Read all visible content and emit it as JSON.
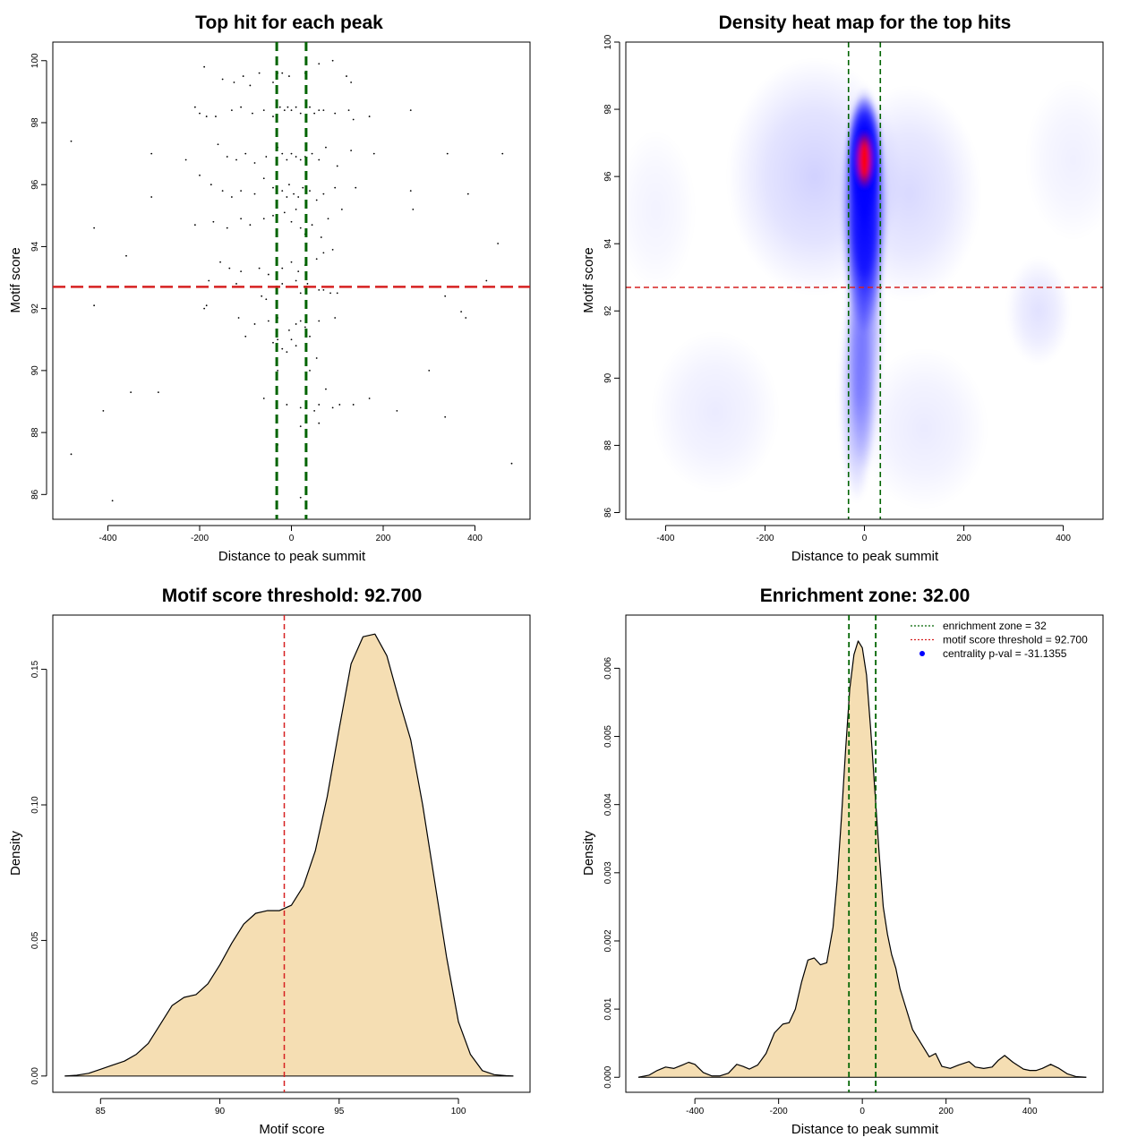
{
  "chart_data": [
    {
      "id": "scatter",
      "type": "scatter",
      "title": "Top hit for each peak",
      "xlabel": "Distance to peak summit",
      "ylabel": "Motif score",
      "xlim": [
        -520,
        520
      ],
      "ylim": [
        85.2,
        100.6
      ],
      "xticks": [
        -400,
        -200,
        0,
        200,
        400
      ],
      "yticks": [
        86,
        88,
        90,
        92,
        94,
        96,
        98,
        100
      ],
      "vlines": [
        -32,
        32
      ],
      "hline": 92.7,
      "colors": {
        "points": "#000000",
        "vline": "#006400",
        "hline": "#d62020"
      },
      "points": [
        [
          -190,
          99.8
        ],
        [
          -150,
          99.4
        ],
        [
          -125,
          99.3
        ],
        [
          -105,
          99.5
        ],
        [
          -90,
          99.2
        ],
        [
          -70,
          99.6
        ],
        [
          -30,
          99.6
        ],
        [
          -20,
          99.6
        ],
        [
          30,
          99.6
        ],
        [
          -40,
          99.3
        ],
        [
          -5,
          99.5
        ],
        [
          60,
          99.9
        ],
        [
          90,
          100.0
        ],
        [
          120,
          99.5
        ],
        [
          130,
          99.3
        ],
        [
          -210,
          98.5
        ],
        [
          -200,
          98.3
        ],
        [
          -185,
          98.2
        ],
        [
          -165,
          98.2
        ],
        [
          -130,
          98.4
        ],
        [
          -110,
          98.5
        ],
        [
          -85,
          98.3
        ],
        [
          -60,
          98.4
        ],
        [
          -40,
          98.2
        ],
        [
          -25,
          98.5
        ],
        [
          -15,
          98.4
        ],
        [
          -8,
          98.5
        ],
        [
          0,
          98.4
        ],
        [
          10,
          98.5
        ],
        [
          20,
          98.3
        ],
        [
          40,
          98.5
        ],
        [
          50,
          98.3
        ],
        [
          60,
          98.4
        ],
        [
          70,
          98.4
        ],
        [
          95,
          98.3
        ],
        [
          125,
          98.4
        ],
        [
          135,
          98.1
        ],
        [
          170,
          98.2
        ],
        [
          260,
          98.4
        ],
        [
          -480,
          97.4
        ],
        [
          -305,
          97.0
        ],
        [
          -230,
          96.8
        ],
        [
          -160,
          97.3
        ],
        [
          -140,
          96.9
        ],
        [
          -120,
          96.8
        ],
        [
          -100,
          97.0
        ],
        [
          -80,
          96.7
        ],
        [
          -55,
          96.9
        ],
        [
          -30,
          97.2
        ],
        [
          -20,
          97.0
        ],
        [
          -10,
          96.8
        ],
        [
          0,
          97.0
        ],
        [
          10,
          96.9
        ],
        [
          20,
          96.8
        ],
        [
          30,
          96.9
        ],
        [
          45,
          97.0
        ],
        [
          60,
          96.8
        ],
        [
          75,
          97.2
        ],
        [
          100,
          96.6
        ],
        [
          130,
          97.1
        ],
        [
          180,
          97.0
        ],
        [
          340,
          97.0
        ],
        [
          460,
          97.0
        ],
        [
          -200,
          96.3
        ],
        [
          -175,
          96.0
        ],
        [
          -150,
          95.8
        ],
        [
          -130,
          95.6
        ],
        [
          -110,
          95.8
        ],
        [
          -80,
          95.7
        ],
        [
          -60,
          96.2
        ],
        [
          -40,
          95.9
        ],
        [
          -20,
          95.8
        ],
        [
          -10,
          95.6
        ],
        [
          -5,
          96.0
        ],
        [
          5,
          95.7
        ],
        [
          15,
          95.6
        ],
        [
          25,
          95.9
        ],
        [
          40,
          95.8
        ],
        [
          55,
          95.5
        ],
        [
          70,
          95.7
        ],
        [
          95,
          95.9
        ],
        [
          140,
          95.9
        ],
        [
          260,
          95.8
        ],
        [
          -305,
          95.6
        ],
        [
          -210,
          94.7
        ],
        [
          -170,
          94.8
        ],
        [
          -140,
          94.6
        ],
        [
          -110,
          94.9
        ],
        [
          -90,
          94.7
        ],
        [
          -60,
          94.9
        ],
        [
          -40,
          95.0
        ],
        [
          -15,
          95.1
        ],
        [
          0,
          94.8
        ],
        [
          10,
          95.2
        ],
        [
          20,
          94.6
        ],
        [
          30,
          94.4
        ],
        [
          45,
          94.7
        ],
        [
          65,
          94.3
        ],
        [
          80,
          94.9
        ],
        [
          110,
          95.2
        ],
        [
          265,
          95.2
        ],
        [
          385,
          95.7
        ],
        [
          -430,
          94.6
        ],
        [
          -360,
          93.7
        ],
        [
          -155,
          93.5
        ],
        [
          -135,
          93.3
        ],
        [
          -110,
          93.2
        ],
        [
          -70,
          93.3
        ],
        [
          -50,
          93.1
        ],
        [
          -20,
          93.3
        ],
        [
          0,
          93.5
        ],
        [
          15,
          93.2
        ],
        [
          30,
          93.4
        ],
        [
          55,
          93.6
        ],
        [
          70,
          93.8
        ],
        [
          90,
          93.9
        ],
        [
          450,
          94.1
        ],
        [
          -180,
          92.9
        ],
        [
          -120,
          92.8
        ],
        [
          -65,
          92.4
        ],
        [
          -55,
          92.3
        ],
        [
          -20,
          92.8
        ],
        [
          10,
          92.9
        ],
        [
          20,
          92.5
        ],
        [
          35,
          92.8
        ],
        [
          60,
          92.6
        ],
        [
          70,
          92.6
        ],
        [
          85,
          92.5
        ],
        [
          100,
          92.5
        ],
        [
          335,
          92.4
        ],
        [
          425,
          92.9
        ],
        [
          -430,
          92.1
        ],
        [
          -190,
          92.0
        ],
        [
          -185,
          92.1
        ],
        [
          -115,
          91.7
        ],
        [
          -80,
          91.5
        ],
        [
          -50,
          91.6
        ],
        [
          -30,
          91.7
        ],
        [
          -5,
          91.3
        ],
        [
          10,
          91.5
        ],
        [
          20,
          91.6
        ],
        [
          30,
          91.4
        ],
        [
          60,
          91.6
        ],
        [
          95,
          91.7
        ],
        [
          370,
          91.9
        ],
        [
          380,
          91.7
        ],
        [
          -100,
          91.1
        ],
        [
          -40,
          90.9
        ],
        [
          -30,
          91.0
        ],
        [
          -20,
          90.7
        ],
        [
          -10,
          90.6
        ],
        [
          0,
          91.0
        ],
        [
          10,
          90.8
        ],
        [
          40,
          91.1
        ],
        [
          55,
          90.4
        ],
        [
          40,
          90.0
        ],
        [
          -30,
          90.0
        ],
        [
          300,
          90.0
        ],
        [
          -410,
          88.7
        ],
        [
          -350,
          89.3
        ],
        [
          -290,
          89.3
        ],
        [
          -60,
          89.1
        ],
        [
          -10,
          88.9
        ],
        [
          20,
          88.8
        ],
        [
          50,
          88.7
        ],
        [
          60,
          88.9
        ],
        [
          75,
          89.4
        ],
        [
          90,
          88.8
        ],
        [
          105,
          88.9
        ],
        [
          135,
          88.9
        ],
        [
          170,
          89.1
        ],
        [
          230,
          88.7
        ],
        [
          335,
          88.5
        ],
        [
          -480,
          87.3
        ],
        [
          -390,
          85.8
        ],
        [
          -30,
          87.6
        ],
        [
          20,
          88.2
        ],
        [
          60,
          88.3
        ],
        [
          20,
          85.9
        ],
        [
          480,
          87.0
        ]
      ]
    },
    {
      "id": "heatmap",
      "type": "heatmap",
      "title": "Density heat map for the top hits",
      "xlabel": "Distance to peak summit",
      "ylabel": "Motif score",
      "xlim": [
        -480,
        480
      ],
      "ylim": [
        85.8,
        100.0
      ],
      "xticks": [
        -400,
        -200,
        0,
        200,
        400
      ],
      "yticks": [
        86,
        88,
        90,
        92,
        94,
        96,
        98,
        100
      ],
      "vlines": [
        -32,
        32
      ],
      "hline": 92.7,
      "colors": {
        "low": "#ffffff",
        "mid": "#0000ff",
        "high": "#ff0000",
        "vline": "#006400",
        "hline": "#d62020"
      },
      "density_peak": [
        0,
        96.5
      ],
      "blobs": [
        [
          0,
          96.5,
          22,
          1.2,
          1.0
        ],
        [
          0,
          95.0,
          28,
          2.3,
          0.75
        ],
        [
          0,
          92.0,
          24,
          3.0,
          0.5
        ],
        [
          -15,
          89.5,
          22,
          2.0,
          0.35
        ],
        [
          -100,
          96.0,
          110,
          2.2,
          0.18
        ],
        [
          90,
          95.5,
          90,
          2.0,
          0.15
        ],
        [
          350,
          92.0,
          40,
          1.0,
          0.12
        ],
        [
          -300,
          89.0,
          80,
          1.5,
          0.08
        ],
        [
          120,
          88.5,
          80,
          1.5,
          0.08
        ],
        [
          -420,
          95.0,
          50,
          1.5,
          0.05
        ],
        [
          420,
          96.5,
          60,
          1.5,
          0.06
        ]
      ]
    },
    {
      "id": "score-density",
      "type": "area",
      "title": "Motif score threshold: 92.700",
      "xlabel": "Motif score",
      "ylabel": "Density",
      "xlim": [
        83,
        103
      ],
      "ylim": [
        -0.006,
        0.17
      ],
      "xticks": [
        85,
        90,
        95,
        100
      ],
      "yticks": [
        0.0,
        0.05,
        0.1,
        0.15
      ],
      "ytick_labels": [
        "0.00",
        "0.05",
        "0.10",
        "0.15"
      ],
      "vline": 92.7,
      "colors": {
        "fill": "#f5deb3",
        "line": "#000000",
        "vline": "#d62020"
      },
      "x": [
        83.5,
        84,
        84.5,
        85,
        85.5,
        86,
        86.5,
        87,
        87.5,
        88,
        88.5,
        89,
        89.5,
        90,
        90.5,
        91,
        91.5,
        92,
        92.5,
        93,
        93.5,
        94,
        94.5,
        95,
        95.5,
        96,
        96.5,
        97,
        97.5,
        98,
        98.5,
        99,
        99.5,
        100,
        100.5,
        101,
        101.5,
        102,
        102.3
      ],
      "y": [
        0.0,
        0.0003,
        0.001,
        0.0025,
        0.004,
        0.0055,
        0.008,
        0.012,
        0.019,
        0.026,
        0.029,
        0.03,
        0.034,
        0.041,
        0.049,
        0.056,
        0.06,
        0.061,
        0.061,
        0.063,
        0.07,
        0.083,
        0.103,
        0.128,
        0.152,
        0.162,
        0.163,
        0.155,
        0.139,
        0.124,
        0.1,
        0.072,
        0.044,
        0.02,
        0.008,
        0.002,
        0.0005,
        0.0001,
        0.0
      ]
    },
    {
      "id": "distance-density",
      "type": "area",
      "title": "Enrichment zone: 32.00",
      "xlabel": "Distance to peak summit",
      "ylabel": "Density",
      "xlim": [
        -565,
        575
      ],
      "ylim": [
        -0.00022,
        0.00678
      ],
      "xticks": [
        -400,
        -200,
        0,
        200,
        400
      ],
      "yticks": [
        0.0,
        0.001,
        0.002,
        0.003,
        0.004,
        0.005,
        0.006
      ],
      "ytick_labels": [
        "0.000",
        "0.001",
        "0.002",
        "0.003",
        "0.004",
        "0.005",
        "0.006"
      ],
      "vlines": [
        -32,
        32
      ],
      "colors": {
        "fill": "#f5deb3",
        "line": "#000000",
        "vline": "#006400",
        "threshold": "#d62020",
        "pval": "#0000ff"
      },
      "legend": [
        {
          "label": "enrichment zone = 32",
          "color": "#006400",
          "kind": "line"
        },
        {
          "label": "motif score threshold = 92.700",
          "color": "#d62020",
          "kind": "line"
        },
        {
          "label": "centrality p-val = -31.1355",
          "color": "#0000ff",
          "kind": "dot"
        }
      ],
      "x": [
        -535,
        -510,
        -490,
        -470,
        -450,
        -430,
        -415,
        -400,
        -380,
        -360,
        -340,
        -320,
        -300,
        -285,
        -270,
        -250,
        -230,
        -210,
        -190,
        -175,
        -160,
        -145,
        -130,
        -115,
        -100,
        -85,
        -70,
        -60,
        -50,
        -40,
        -30,
        -20,
        -10,
        0,
        10,
        20,
        30,
        40,
        50,
        60,
        70,
        80,
        90,
        100,
        110,
        120,
        130,
        140,
        150,
        160,
        175,
        190,
        210,
        230,
        255,
        270,
        290,
        310,
        325,
        340,
        360,
        385,
        400,
        415,
        430,
        450,
        470,
        490,
        510,
        535
      ],
      "y": [
        0.0,
        3e-05,
        0.0001,
        0.00015,
        0.00013,
        0.00018,
        0.00022,
        0.00019,
        7e-05,
        2e-05,
        2e-05,
        6e-05,
        0.00019,
        0.00016,
        0.00012,
        0.00018,
        0.00035,
        0.00065,
        0.00078,
        0.0008,
        0.001,
        0.0014,
        0.00172,
        0.00175,
        0.00165,
        0.00168,
        0.0022,
        0.0029,
        0.0038,
        0.0048,
        0.0057,
        0.0062,
        0.0064,
        0.0063,
        0.0059,
        0.0051,
        0.0042,
        0.0033,
        0.0025,
        0.0021,
        0.0018,
        0.0016,
        0.0013,
        0.0011,
        0.0009,
        0.0007,
        0.0006,
        0.0005,
        0.0004,
        0.0003,
        0.00035,
        0.00016,
        0.00013,
        0.00018,
        0.00023,
        0.00015,
        0.00013,
        0.00015,
        0.00025,
        0.00032,
        0.00022,
        0.00012,
        0.0001,
        0.0001,
        0.00013,
        0.00019,
        0.00013,
        5e-05,
        1e-05,
        0.0
      ]
    }
  ]
}
